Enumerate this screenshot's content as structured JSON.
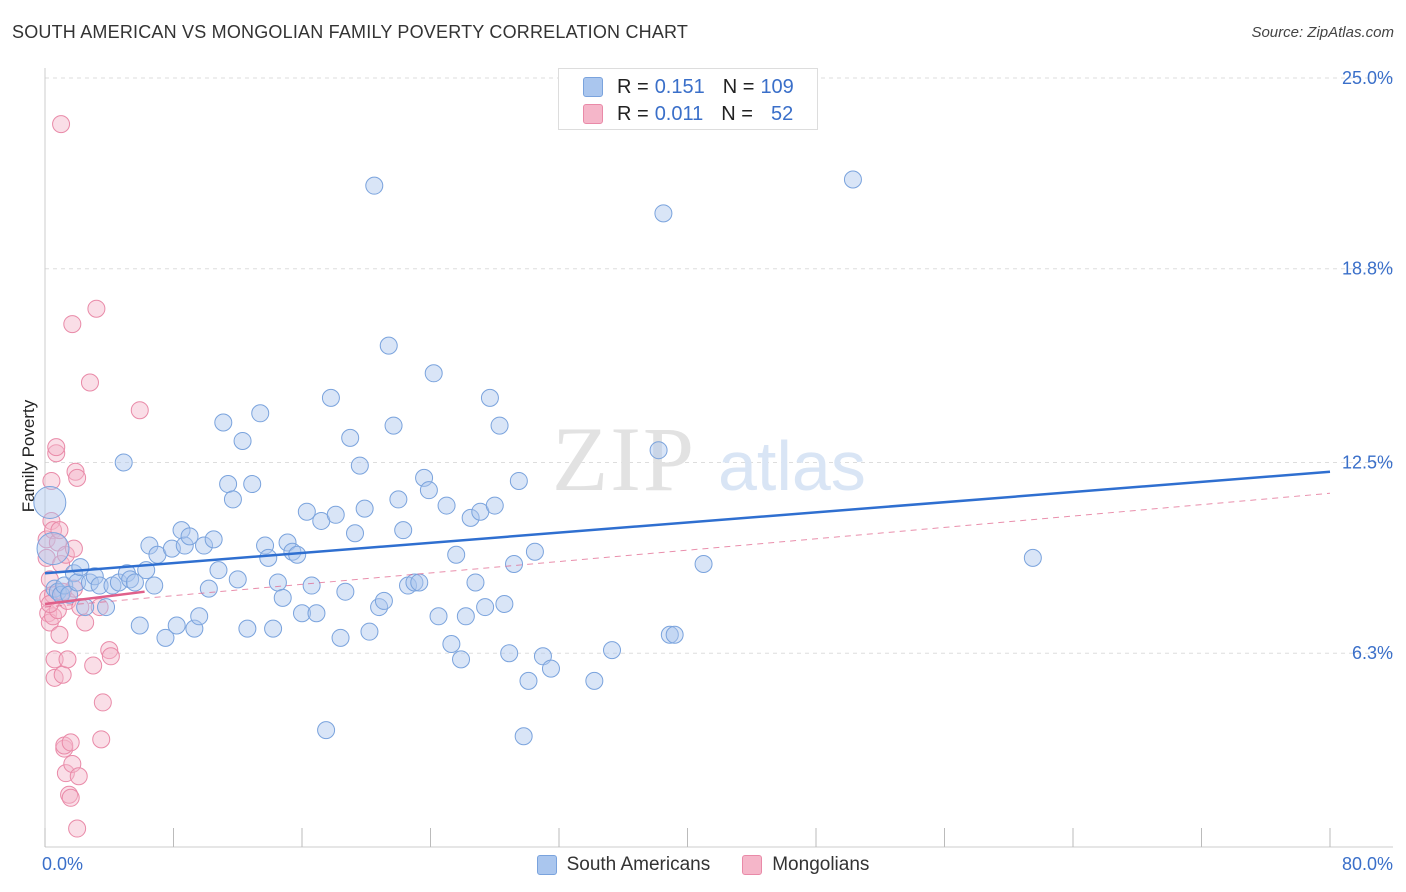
{
  "header": {
    "title": "SOUTH AMERICAN VS MONGOLIAN FAMILY POVERTY CORRELATION CHART",
    "source": "Source: ZipAtlas.com"
  },
  "watermark": {
    "zip": "ZIP",
    "atlas": "atlas"
  },
  "legend": {
    "r_label": "R =",
    "n_label": "N =",
    "rows": [
      {
        "r": "0.151",
        "n": "109"
      },
      {
        "r": "0.011",
        "n": "52"
      }
    ]
  },
  "colors": {
    "blue_fill": "#aac6ee",
    "blue_stroke": "#7aa3dd",
    "blue_line": "#2f6fd0",
    "pink_fill": "#f5b6c9",
    "pink_stroke": "#e98aa8",
    "pink_line": "#e0608a",
    "axis_text": "#3a6fc9",
    "grid": "#dddddd"
  },
  "chart_data": {
    "type": "scatter",
    "title": "SOUTH AMERICAN VS MONGOLIAN FAMILY POVERTY CORRELATION CHART",
    "xlabel": "",
    "ylabel": "Family Poverty",
    "xlim": [
      0,
      80
    ],
    "ylim": [
      0,
      25
    ],
    "x_tick_labels": [
      "0.0%",
      "80.0%"
    ],
    "y_ticks": [
      6.3,
      12.5,
      18.8,
      25.0
    ],
    "y_tick_labels": [
      "6.3%",
      "12.5%",
      "18.8%",
      "25.0%"
    ],
    "grid": true,
    "legend_position": "top-center and bottom",
    "series": [
      {
        "name": "South Americans",
        "r": 0.151,
        "n": 109,
        "trend": {
          "x": [
            0,
            80
          ],
          "y": [
            8.9,
            12.2
          ]
        },
        "points": [
          [
            0.3,
            11.2
          ],
          [
            0.5,
            9.7
          ],
          [
            0.6,
            8.4
          ],
          [
            0.8,
            8.3
          ],
          [
            1.0,
            8.2
          ],
          [
            1.2,
            8.5
          ],
          [
            1.5,
            8.2
          ],
          [
            1.8,
            8.9
          ],
          [
            2.0,
            8.6
          ],
          [
            2.2,
            9.1
          ],
          [
            2.5,
            7.8
          ],
          [
            2.8,
            8.6
          ],
          [
            3.1,
            8.8
          ],
          [
            3.4,
            8.5
          ],
          [
            3.8,
            7.8
          ],
          [
            4.2,
            8.5
          ],
          [
            4.6,
            8.6
          ],
          [
            4.9,
            12.5
          ],
          [
            5.1,
            8.9
          ],
          [
            5.3,
            8.7
          ],
          [
            5.6,
            8.6
          ],
          [
            5.9,
            7.2
          ],
          [
            6.3,
            9.0
          ],
          [
            6.5,
            9.8
          ],
          [
            6.8,
            8.5
          ],
          [
            7.0,
            9.5
          ],
          [
            7.5,
            6.8
          ],
          [
            7.9,
            9.7
          ],
          [
            8.2,
            7.2
          ],
          [
            8.5,
            10.3
          ],
          [
            8.7,
            9.8
          ],
          [
            9.0,
            10.1
          ],
          [
            9.3,
            7.1
          ],
          [
            9.6,
            7.5
          ],
          [
            9.9,
            9.8
          ],
          [
            10.2,
            8.4
          ],
          [
            10.5,
            10.0
          ],
          [
            10.8,
            9.0
          ],
          [
            11.1,
            13.8
          ],
          [
            11.4,
            11.8
          ],
          [
            11.7,
            11.3
          ],
          [
            12.0,
            8.7
          ],
          [
            12.3,
            13.2
          ],
          [
            12.6,
            7.1
          ],
          [
            12.9,
            11.8
          ],
          [
            13.4,
            14.1
          ],
          [
            13.7,
            9.8
          ],
          [
            13.9,
            9.4
          ],
          [
            14.2,
            7.1
          ],
          [
            14.5,
            8.6
          ],
          [
            14.8,
            8.1
          ],
          [
            15.1,
            9.9
          ],
          [
            15.4,
            9.6
          ],
          [
            15.7,
            9.5
          ],
          [
            16.0,
            7.6
          ],
          [
            16.3,
            10.9
          ],
          [
            16.6,
            8.5
          ],
          [
            16.9,
            7.6
          ],
          [
            17.2,
            10.6
          ],
          [
            17.5,
            3.8
          ],
          [
            17.8,
            14.6
          ],
          [
            18.1,
            10.8
          ],
          [
            18.4,
            6.8
          ],
          [
            18.7,
            8.3
          ],
          [
            19.0,
            13.3
          ],
          [
            19.3,
            10.2
          ],
          [
            19.6,
            12.4
          ],
          [
            19.9,
            11.0
          ],
          [
            20.2,
            7.0
          ],
          [
            20.5,
            21.5
          ],
          [
            20.8,
            7.8
          ],
          [
            21.1,
            8.0
          ],
          [
            21.4,
            16.3
          ],
          [
            21.7,
            13.7
          ],
          [
            22.0,
            11.3
          ],
          [
            22.3,
            10.3
          ],
          [
            22.6,
            8.5
          ],
          [
            23.0,
            8.6
          ],
          [
            23.3,
            8.6
          ],
          [
            23.6,
            12.0
          ],
          [
            23.9,
            11.6
          ],
          [
            24.2,
            15.4
          ],
          [
            24.5,
            7.5
          ],
          [
            25.0,
            11.1
          ],
          [
            25.3,
            6.6
          ],
          [
            25.6,
            9.5
          ],
          [
            25.9,
            6.1
          ],
          [
            26.2,
            7.5
          ],
          [
            26.5,
            10.7
          ],
          [
            26.8,
            8.6
          ],
          [
            27.1,
            10.9
          ],
          [
            27.4,
            7.8
          ],
          [
            27.7,
            14.6
          ],
          [
            28.0,
            11.1
          ],
          [
            28.3,
            13.7
          ],
          [
            28.6,
            7.9
          ],
          [
            28.9,
            6.3
          ],
          [
            29.2,
            9.2
          ],
          [
            29.5,
            11.9
          ],
          [
            29.8,
            3.6
          ],
          [
            30.1,
            5.4
          ],
          [
            30.5,
            9.6
          ],
          [
            31.0,
            6.2
          ],
          [
            31.5,
            5.8
          ],
          [
            34.2,
            5.4
          ],
          [
            35.3,
            6.4
          ],
          [
            38.9,
            6.9
          ],
          [
            39.2,
            6.9
          ],
          [
            38.2,
            12.9
          ],
          [
            38.5,
            20.6
          ],
          [
            41.0,
            9.2
          ],
          [
            50.3,
            21.7
          ],
          [
            61.5,
            9.4
          ]
        ]
      },
      {
        "name": "Mongolians",
        "r": 0.011,
        "n": 52,
        "trend": {
          "x": [
            0,
            6.2
          ],
          "y": [
            7.9,
            8.3
          ]
        },
        "trend_extended": {
          "x": [
            0,
            80
          ],
          "y": [
            7.8,
            11.5
          ]
        },
        "points": [
          [
            0.1,
            10.0
          ],
          [
            0.1,
            9.4
          ],
          [
            0.2,
            8.1
          ],
          [
            0.2,
            7.6
          ],
          [
            0.3,
            7.3
          ],
          [
            0.3,
            8.7
          ],
          [
            0.4,
            11.9
          ],
          [
            0.4,
            10.6
          ],
          [
            0.5,
            10.3
          ],
          [
            0.5,
            7.5
          ],
          [
            0.6,
            6.1
          ],
          [
            0.6,
            5.5
          ],
          [
            0.7,
            12.8
          ],
          [
            0.7,
            13.0
          ],
          [
            0.8,
            9.9
          ],
          [
            0.8,
            7.7
          ],
          [
            0.9,
            10.3
          ],
          [
            0.9,
            6.9
          ],
          [
            1.0,
            23.5
          ],
          [
            1.0,
            9.2
          ],
          [
            1.1,
            5.6
          ],
          [
            1.2,
            3.2
          ],
          [
            1.2,
            3.3
          ],
          [
            1.3,
            2.4
          ],
          [
            1.3,
            9.5
          ],
          [
            1.4,
            8.0
          ],
          [
            1.4,
            6.1
          ],
          [
            1.5,
            1.7
          ],
          [
            1.6,
            1.6
          ],
          [
            1.6,
            3.4
          ],
          [
            1.7,
            17.0
          ],
          [
            1.7,
            2.7
          ],
          [
            1.8,
            9.7
          ],
          [
            1.8,
            8.4
          ],
          [
            1.9,
            12.2
          ],
          [
            2.0,
            0.6
          ],
          [
            2.0,
            12.0
          ],
          [
            2.1,
            2.3
          ],
          [
            2.2,
            7.8
          ],
          [
            2.5,
            7.3
          ],
          [
            2.8,
            15.1
          ],
          [
            3.0,
            5.9
          ],
          [
            3.2,
            17.5
          ],
          [
            3.4,
            7.8
          ],
          [
            3.5,
            3.5
          ],
          [
            3.6,
            4.7
          ],
          [
            4.0,
            6.4
          ],
          [
            4.1,
            6.2
          ],
          [
            5.9,
            14.2
          ],
          [
            0.5,
            8.2
          ],
          [
            0.3,
            7.9
          ],
          [
            1.1,
            8.3
          ]
        ]
      }
    ]
  },
  "bottom_legend": {
    "items": [
      {
        "label": "South Americans"
      },
      {
        "label": "Mongolians"
      }
    ]
  }
}
